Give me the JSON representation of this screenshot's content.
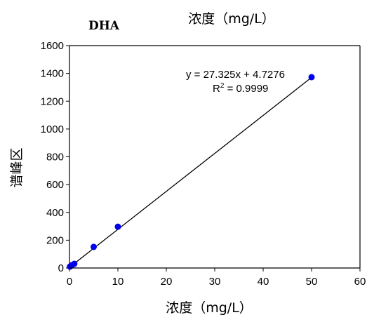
{
  "chart_data": {
    "type": "scatter",
    "title": "浓度（mg/L）",
    "subtitle": "DHA",
    "xlabel": "浓度（mg/L）",
    "ylabel": "谱峰区",
    "xlim": [
      0,
      60
    ],
    "ylim": [
      0,
      1600
    ],
    "xticks": [
      0,
      10,
      20,
      30,
      40,
      50,
      60
    ],
    "yticks": [
      0,
      200,
      400,
      600,
      800,
      1000,
      1200,
      1400,
      1600
    ],
    "grid": false,
    "legend": "none",
    "series": [
      {
        "color": "#0000ee",
        "points": [
          {
            "x": 0.1,
            "y": 10
          },
          {
            "x": 0.5,
            "y": 20
          },
          {
            "x": 1.0,
            "y": 30
          },
          {
            "x": 5.0,
            "y": 152
          },
          {
            "x": 10.0,
            "y": 297
          },
          {
            "x": 50.0,
            "y": 1373
          }
        ]
      }
    ],
    "trendline": {
      "slope": 27.325,
      "intercept": 4.7276,
      "x_range": [
        0,
        50
      ],
      "color": "#000000"
    },
    "annotations": {
      "equation": "y = 27.325x + 4.7276",
      "r2_prefix": "R",
      "r2_superscript": "2",
      "r2_value": " = 0.9999"
    }
  }
}
